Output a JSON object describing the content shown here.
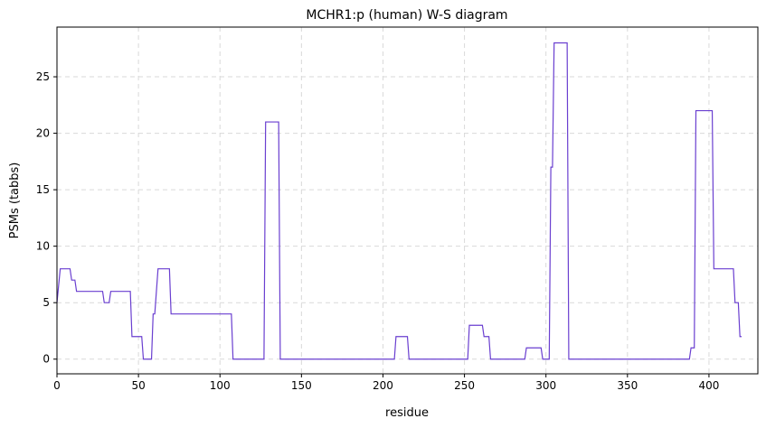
{
  "chart_data": {
    "type": "line",
    "title": "MCHR1:p (human) W-S diagram",
    "x_label": "residue",
    "y_label": "PSMs (tabbs)",
    "x": [
      0,
      2,
      8,
      9,
      11,
      12,
      28,
      29,
      32,
      33,
      45,
      46,
      52,
      53,
      58,
      59,
      60,
      62,
      69,
      70,
      107,
      108,
      127,
      128,
      136,
      137,
      207,
      208,
      215,
      216,
      252,
      253,
      261,
      262,
      265,
      266,
      287,
      288,
      297,
      298,
      302,
      303,
      304,
      305,
      313,
      314,
      388,
      389,
      391,
      392,
      402,
      403,
      415,
      416,
      418,
      419,
      420
    ],
    "series": [
      {
        "name": "PSMs",
        "color": "#6a3fd0",
        "values": [
          5,
          8,
          8,
          7,
          7,
          6,
          6,
          5,
          5,
          6,
          6,
          2,
          2,
          0,
          0,
          4,
          4,
          8,
          8,
          4,
          4,
          0,
          0,
          21,
          21,
          0,
          0,
          2,
          2,
          0,
          0,
          3,
          3,
          2,
          2,
          0,
          0,
          1,
          1,
          0,
          0,
          17,
          17,
          28,
          28,
          0,
          0,
          1,
          1,
          22,
          22,
          8,
          8,
          5,
          5,
          2,
          2
        ]
      }
    ],
    "xlim": [
      0,
      430
    ],
    "ylim": [
      -1.3,
      29.4
    ],
    "xticks": [
      0,
      50,
      100,
      150,
      200,
      250,
      300,
      350,
      400
    ],
    "yticks": [
      0,
      5,
      10,
      15,
      20,
      25
    ],
    "grid": true
  }
}
